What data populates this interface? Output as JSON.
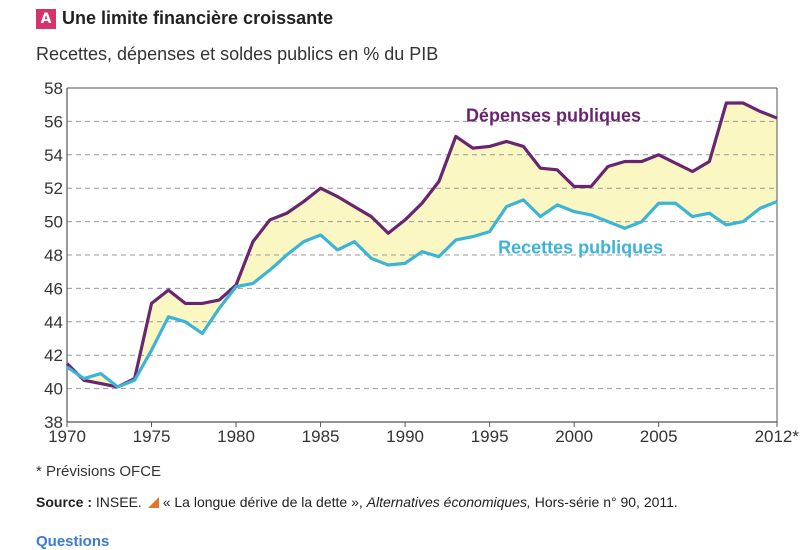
{
  "header": {
    "badge": "A",
    "title": "Une limite financière croissante",
    "subtitle": "Recettes, dépenses et soldes publics en % du PIB"
  },
  "colors": {
    "badge": "#d6336c",
    "depenses": "#6a2570",
    "recettes": "#3cb4d8",
    "fill": "#fbf7c3",
    "grid": "#999999",
    "axis": "#555555"
  },
  "chart_data": {
    "type": "line",
    "title": "Recettes, dépenses et soldes publics en % du PIB",
    "xlabel": "",
    "ylabel": "",
    "xlim": [
      1970,
      2012
    ],
    "ylim": [
      38,
      58
    ],
    "x_ticks": [
      1970,
      1975,
      1980,
      1985,
      1990,
      1995,
      2000,
      2005
    ],
    "x_tick_labels": [
      "1970",
      "1975",
      "1980",
      "1985",
      "1990",
      "1995",
      "2000",
      "2005"
    ],
    "x_last_label": "2012*",
    "y_ticks": [
      38,
      40,
      42,
      44,
      46,
      48,
      50,
      52,
      54,
      56,
      58
    ],
    "grid": true,
    "area_between_series": true,
    "x": [
      1970,
      1971,
      1972,
      1973,
      1974,
      1975,
      1976,
      1977,
      1978,
      1979,
      1980,
      1981,
      1982,
      1983,
      1984,
      1985,
      1986,
      1987,
      1988,
      1989,
      1990,
      1991,
      1992,
      1993,
      1994,
      1995,
      1996,
      1997,
      1998,
      1999,
      2000,
      2001,
      2002,
      2003,
      2004,
      2005,
      2006,
      2007,
      2008,
      2009,
      2010,
      2011,
      2012
    ],
    "series": [
      {
        "name": "Dépenses publiques",
        "color": "#6a2570",
        "values": [
          41.5,
          40.5,
          40.3,
          40.1,
          40.6,
          45.1,
          45.9,
          45.1,
          45.1,
          45.3,
          46.2,
          48.8,
          50.1,
          50.5,
          51.2,
          52.0,
          51.5,
          50.9,
          50.3,
          49.3,
          50.1,
          51.1,
          52.4,
          55.1,
          54.4,
          54.5,
          54.8,
          54.5,
          53.2,
          53.1,
          52.1,
          52.1,
          53.3,
          53.6,
          53.6,
          54.0,
          53.5,
          53.0,
          53.6,
          57.1,
          57.1,
          56.6,
          56.2
        ],
        "label": "Dépenses publiques",
        "label_anchor": [
          1993.6,
          56.0
        ]
      },
      {
        "name": "Recettes publiques",
        "color": "#3cb4d8",
        "values": [
          41.3,
          40.6,
          40.9,
          40.1,
          40.5,
          42.3,
          44.3,
          44.0,
          43.3,
          44.8,
          46.1,
          46.3,
          47.1,
          48.0,
          48.8,
          49.2,
          48.3,
          48.8,
          47.8,
          47.4,
          47.5,
          48.2,
          47.9,
          48.9,
          49.1,
          49.4,
          50.9,
          51.3,
          50.3,
          51.0,
          50.6,
          50.4,
          50.0,
          49.6,
          50.0,
          51.1,
          51.1,
          50.3,
          50.5,
          49.8,
          50.0,
          50.8,
          51.2
        ],
        "label": "Recettes publiques",
        "label_anchor": [
          1995.5,
          48.1
        ]
      }
    ]
  },
  "footnote": "* Prévisions OFCE",
  "source": {
    "label": "Source :",
    "org": "INSEE.",
    "quote": "« La longue dérive de la dette »,",
    "journal": "Alternatives économiques,",
    "rest": "Hors-série n° 90, 2011."
  },
  "questions": "Questions"
}
